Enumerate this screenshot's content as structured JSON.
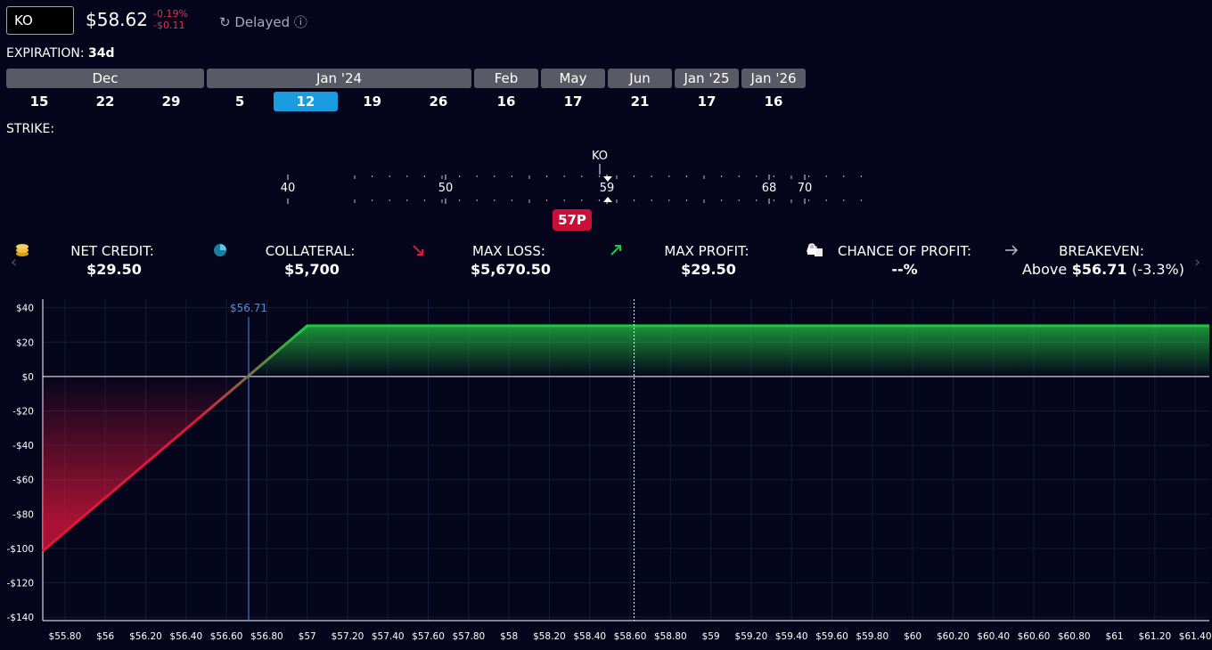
{
  "header": {
    "ticker": "KO",
    "price": "$58.62",
    "change_pct": "-0.19%",
    "change_abs": "-$0.11",
    "status": "Delayed"
  },
  "expiration": {
    "label": "EXPIRATION:",
    "value": "34d",
    "groups": [
      {
        "month": "Dec",
        "days": [
          "15",
          "22",
          "29"
        ]
      },
      {
        "month": "Jan '24",
        "days": [
          "5",
          "12",
          "19",
          "26"
        ]
      },
      {
        "month": "Feb",
        "days": [
          "16"
        ]
      },
      {
        "month": "May",
        "days": [
          "17"
        ]
      },
      {
        "month": "Jun",
        "days": [
          "21"
        ]
      },
      {
        "month": "Jan '25",
        "days": [
          "17"
        ]
      },
      {
        "month": "Jan '26",
        "days": [
          "16"
        ]
      }
    ],
    "selected": {
      "group": 1,
      "day": 1
    }
  },
  "strike": {
    "label": "STRIKE:",
    "ticks": [
      "40",
      "50",
      "59",
      "68",
      "70"
    ],
    "underlying": "KO",
    "position": "57P"
  },
  "stats": [
    {
      "label": "NET CREDIT:",
      "value": "$29.50"
    },
    {
      "label": "COLLATERAL:",
      "value": "$5,700"
    },
    {
      "label": "MAX LOSS:",
      "value": "$5,670.50"
    },
    {
      "label": "MAX PROFIT:",
      "value": "$29.50"
    },
    {
      "label": "CHANCE OF PROFIT:",
      "value": "--%"
    },
    {
      "label": "BREAKEVEN:",
      "prefix": "Above",
      "value": "$56.71",
      "suffix": "(-3.3%)"
    }
  ],
  "chart_data": {
    "type": "line",
    "x": [
      55.69,
      57,
      61.47
    ],
    "series": [
      {
        "values": [
          -101.5,
          29.5,
          29.5
        ],
        "loss_color": "#e0163c",
        "profit_color": "#22c443"
      }
    ],
    "xlim": [
      55.69,
      61.47
    ],
    "xticks": [
      {
        "value": 55.8,
        "label": "$55.80"
      },
      {
        "value": 56,
        "label": "$56"
      },
      {
        "value": 56.2,
        "label": "$56.20"
      },
      {
        "value": 56.4,
        "label": "$56.40"
      },
      {
        "value": 56.6,
        "label": "$56.60"
      },
      {
        "value": 56.8,
        "label": "$56.80"
      },
      {
        "value": 57,
        "label": "$57"
      },
      {
        "value": 57.2,
        "label": "$57.20"
      },
      {
        "value": 57.4,
        "label": "$57.40"
      },
      {
        "value": 57.6,
        "label": "$57.60"
      },
      {
        "value": 57.8,
        "label": "$57.80"
      },
      {
        "value": 58,
        "label": "$58"
      },
      {
        "value": 58.2,
        "label": "$58.20"
      },
      {
        "value": 58.4,
        "label": "$58.40"
      },
      {
        "value": 58.6,
        "label": "$58.60"
      },
      {
        "value": 58.8,
        "label": "$58.80"
      },
      {
        "value": 59,
        "label": "$59"
      },
      {
        "value": 59.2,
        "label": "$59.20"
      },
      {
        "value": 59.4,
        "label": "$59.40"
      },
      {
        "value": 59.6,
        "label": "$59.60"
      },
      {
        "value": 59.8,
        "label": "$59.80"
      },
      {
        "value": 60,
        "label": "$60"
      },
      {
        "value": 60.2,
        "label": "$60.20"
      },
      {
        "value": 60.4,
        "label": "$60.40"
      },
      {
        "value": 60.6,
        "label": "$60.60"
      },
      {
        "value": 60.8,
        "label": "$60.80"
      },
      {
        "value": 61,
        "label": "$61"
      },
      {
        "value": 61.2,
        "label": "$61.20"
      },
      {
        "value": 61.4,
        "label": "$61.40"
      }
    ],
    "ylim": [
      -142,
      45
    ],
    "yticks": [
      {
        "value": 40,
        "label": "$40"
      },
      {
        "value": 20,
        "label": "$20"
      },
      {
        "value": 0,
        "label": "$0"
      },
      {
        "value": -20,
        "label": "-$20"
      },
      {
        "value": -40,
        "label": "-$40"
      },
      {
        "value": -60,
        "label": "-$60"
      },
      {
        "value": -80,
        "label": "-$80"
      },
      {
        "value": -100,
        "label": "-$100"
      },
      {
        "value": -120,
        "label": "-$120"
      },
      {
        "value": -140,
        "label": "-$140"
      }
    ],
    "grid": true,
    "breakeven": {
      "value": 56.71,
      "label": "$56.71",
      "color": "#4a90e2"
    },
    "current_price": 58.62
  }
}
